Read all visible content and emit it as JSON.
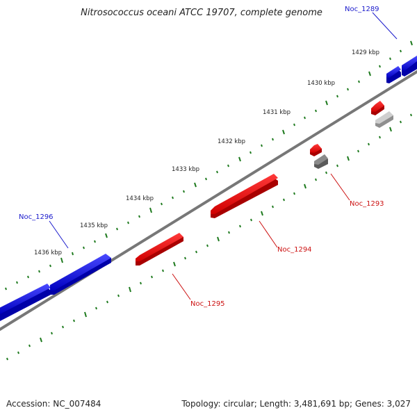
{
  "title": "Nitrosococcus oceani ATCC 19707, complete genome",
  "footer": {
    "accession": "Accession: NC_007484",
    "summary": "Topology: circular; Length: 3,481,691 bp; Genes: 3,027"
  },
  "kbp_ticks": [
    {
      "label": "1429 kbp"
    },
    {
      "label": "1430 kbp"
    },
    {
      "label": "1431 kbp"
    },
    {
      "label": "1432 kbp"
    },
    {
      "label": "1433 kbp"
    },
    {
      "label": "1434 kbp"
    },
    {
      "label": "1435 kbp"
    },
    {
      "label": "1436 kbp"
    }
  ],
  "genes": [
    {
      "name": "Noc_1289",
      "strand": "forward"
    },
    {
      "name": "Noc_1293",
      "strand": "reverse"
    },
    {
      "name": "Noc_1294",
      "strand": "reverse"
    },
    {
      "name": "Noc_1295",
      "strand": "reverse"
    },
    {
      "name": "Noc_1296",
      "strand": "forward"
    }
  ],
  "colors": {
    "forward_gene": "#1010e0",
    "reverse_gene": "#ee0000",
    "label_forward": "#1a1acc",
    "label_reverse": "#cc1111",
    "backbone": "#777777",
    "gc_ticks": "#1e7a1e"
  }
}
